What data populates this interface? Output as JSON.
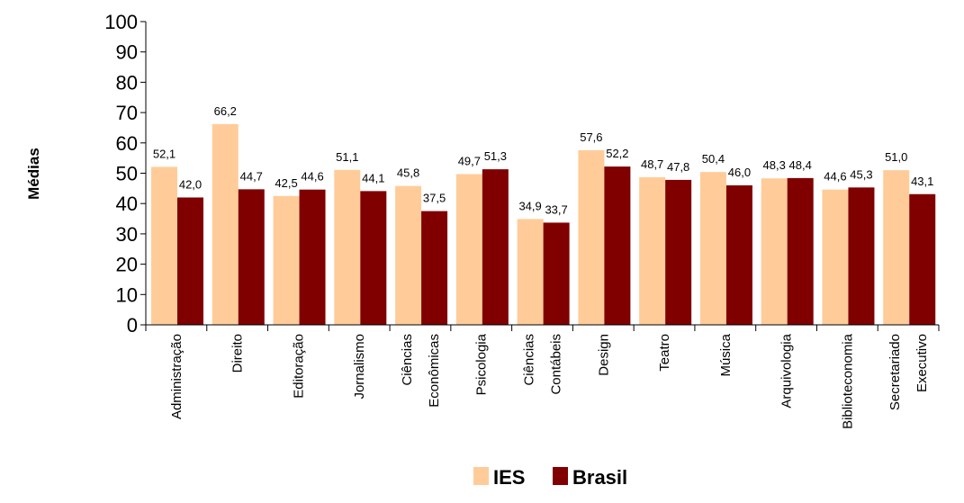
{
  "chart_data": {
    "type": "bar",
    "title": "",
    "ylabel": "Médias",
    "xlabel": "",
    "ylim": [
      0,
      100
    ],
    "yticks": [
      "0",
      "10",
      "20",
      "30",
      "40",
      "50",
      "60",
      "70",
      "80",
      "90",
      "100"
    ],
    "categories": [
      [
        "Administração"
      ],
      [
        "Direito"
      ],
      [
        "Editoração"
      ],
      [
        "Jornalismo"
      ],
      [
        "Ciências",
        "Econômicas"
      ],
      [
        "Psicologia"
      ],
      [
        "Ciências",
        "Contábeis"
      ],
      [
        "Design"
      ],
      [
        "Teatro"
      ],
      [
        "Música"
      ],
      [
        "Arquivologia"
      ],
      [
        "Biblioteconomia"
      ],
      [
        "Secretariado",
        "Executivo"
      ]
    ],
    "series": [
      {
        "name": "IES",
        "color": "#FFCC99",
        "values": [
          52.1,
          66.2,
          42.5,
          51.1,
          45.8,
          49.7,
          34.9,
          57.6,
          48.7,
          50.4,
          48.3,
          44.6,
          51.0
        ],
        "labels": [
          "52,1",
          "66,2",
          "42,5",
          "51,1",
          "45,8",
          "49,7",
          "34,9",
          "57,6",
          "48,7",
          "50,4",
          "48,3",
          "44,6",
          "51,0"
        ]
      },
      {
        "name": "Brasil",
        "color": "#800000",
        "values": [
          42.0,
          44.7,
          44.6,
          44.1,
          37.5,
          51.3,
          33.7,
          52.2,
          47.8,
          46.0,
          48.4,
          45.3,
          43.1
        ],
        "labels": [
          "42,0",
          "44,7",
          "44,6",
          "44,1",
          "37,5",
          "51,3",
          "33,7",
          "52,2",
          "47,8",
          "46,0",
          "48,4",
          "45,3",
          "43,1"
        ]
      }
    ],
    "legend_position": "bottom",
    "grid": false
  }
}
